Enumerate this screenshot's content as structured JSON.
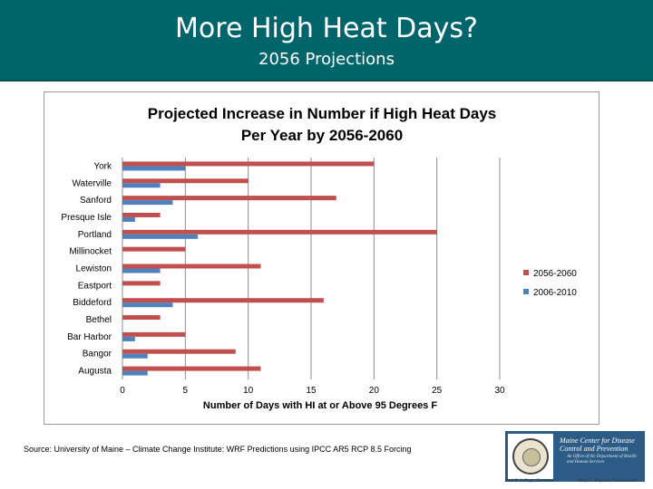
{
  "slide": {
    "title": "More High Heat Days?",
    "subtitle": "2056 Projections"
  },
  "chart_data": {
    "type": "bar",
    "orientation": "horizontal",
    "title": "Projected Increase in Number if High Heat Days Per Year by 2056-2060",
    "title_lines": [
      "Projected Increase in Number if High Heat Days",
      "Per Year by 2056-2060"
    ],
    "xlabel": "Number of Days with HI at or Above 95 Degrees F",
    "ylabel": "",
    "categories": [
      "York",
      "Waterville",
      "Sanford",
      "Presque Isle",
      "Portland",
      "Millinocket",
      "Lewiston",
      "Eastport",
      "Biddeford",
      "Bethel",
      "Bar Harbor",
      "Bangor",
      "Augusta"
    ],
    "series": [
      {
        "name": "2056-2060",
        "color": "#c0504d",
        "values": [
          20,
          10,
          17,
          3,
          25,
          5,
          11,
          3,
          16,
          3,
          5,
          9,
          11
        ]
      },
      {
        "name": "2006-2010",
        "color": "#4f81bd",
        "values": [
          5,
          3,
          4,
          1,
          6,
          0,
          3,
          0,
          4,
          0,
          1,
          2,
          2
        ]
      }
    ],
    "xlim": [
      0,
      30
    ],
    "xticks": [
      "0",
      "5",
      "10",
      "15",
      "20",
      "25",
      "30"
    ],
    "grid": "vertical",
    "legend": "right"
  },
  "footer": {
    "source": "Source: University of Maine – Climate Change Institute:  WRF Predictions using IPCC AR5 RCP 8.5 Forcing",
    "logo_line1": "Maine Center for Disease",
    "logo_line2": "Control and Prevention",
    "logo_line3": "An Office of the Department of Health and Human Services",
    "credit_left": "Paul R. LePage, Governor",
    "credit_right": "Mary C. Mayhew, Commissioner"
  }
}
